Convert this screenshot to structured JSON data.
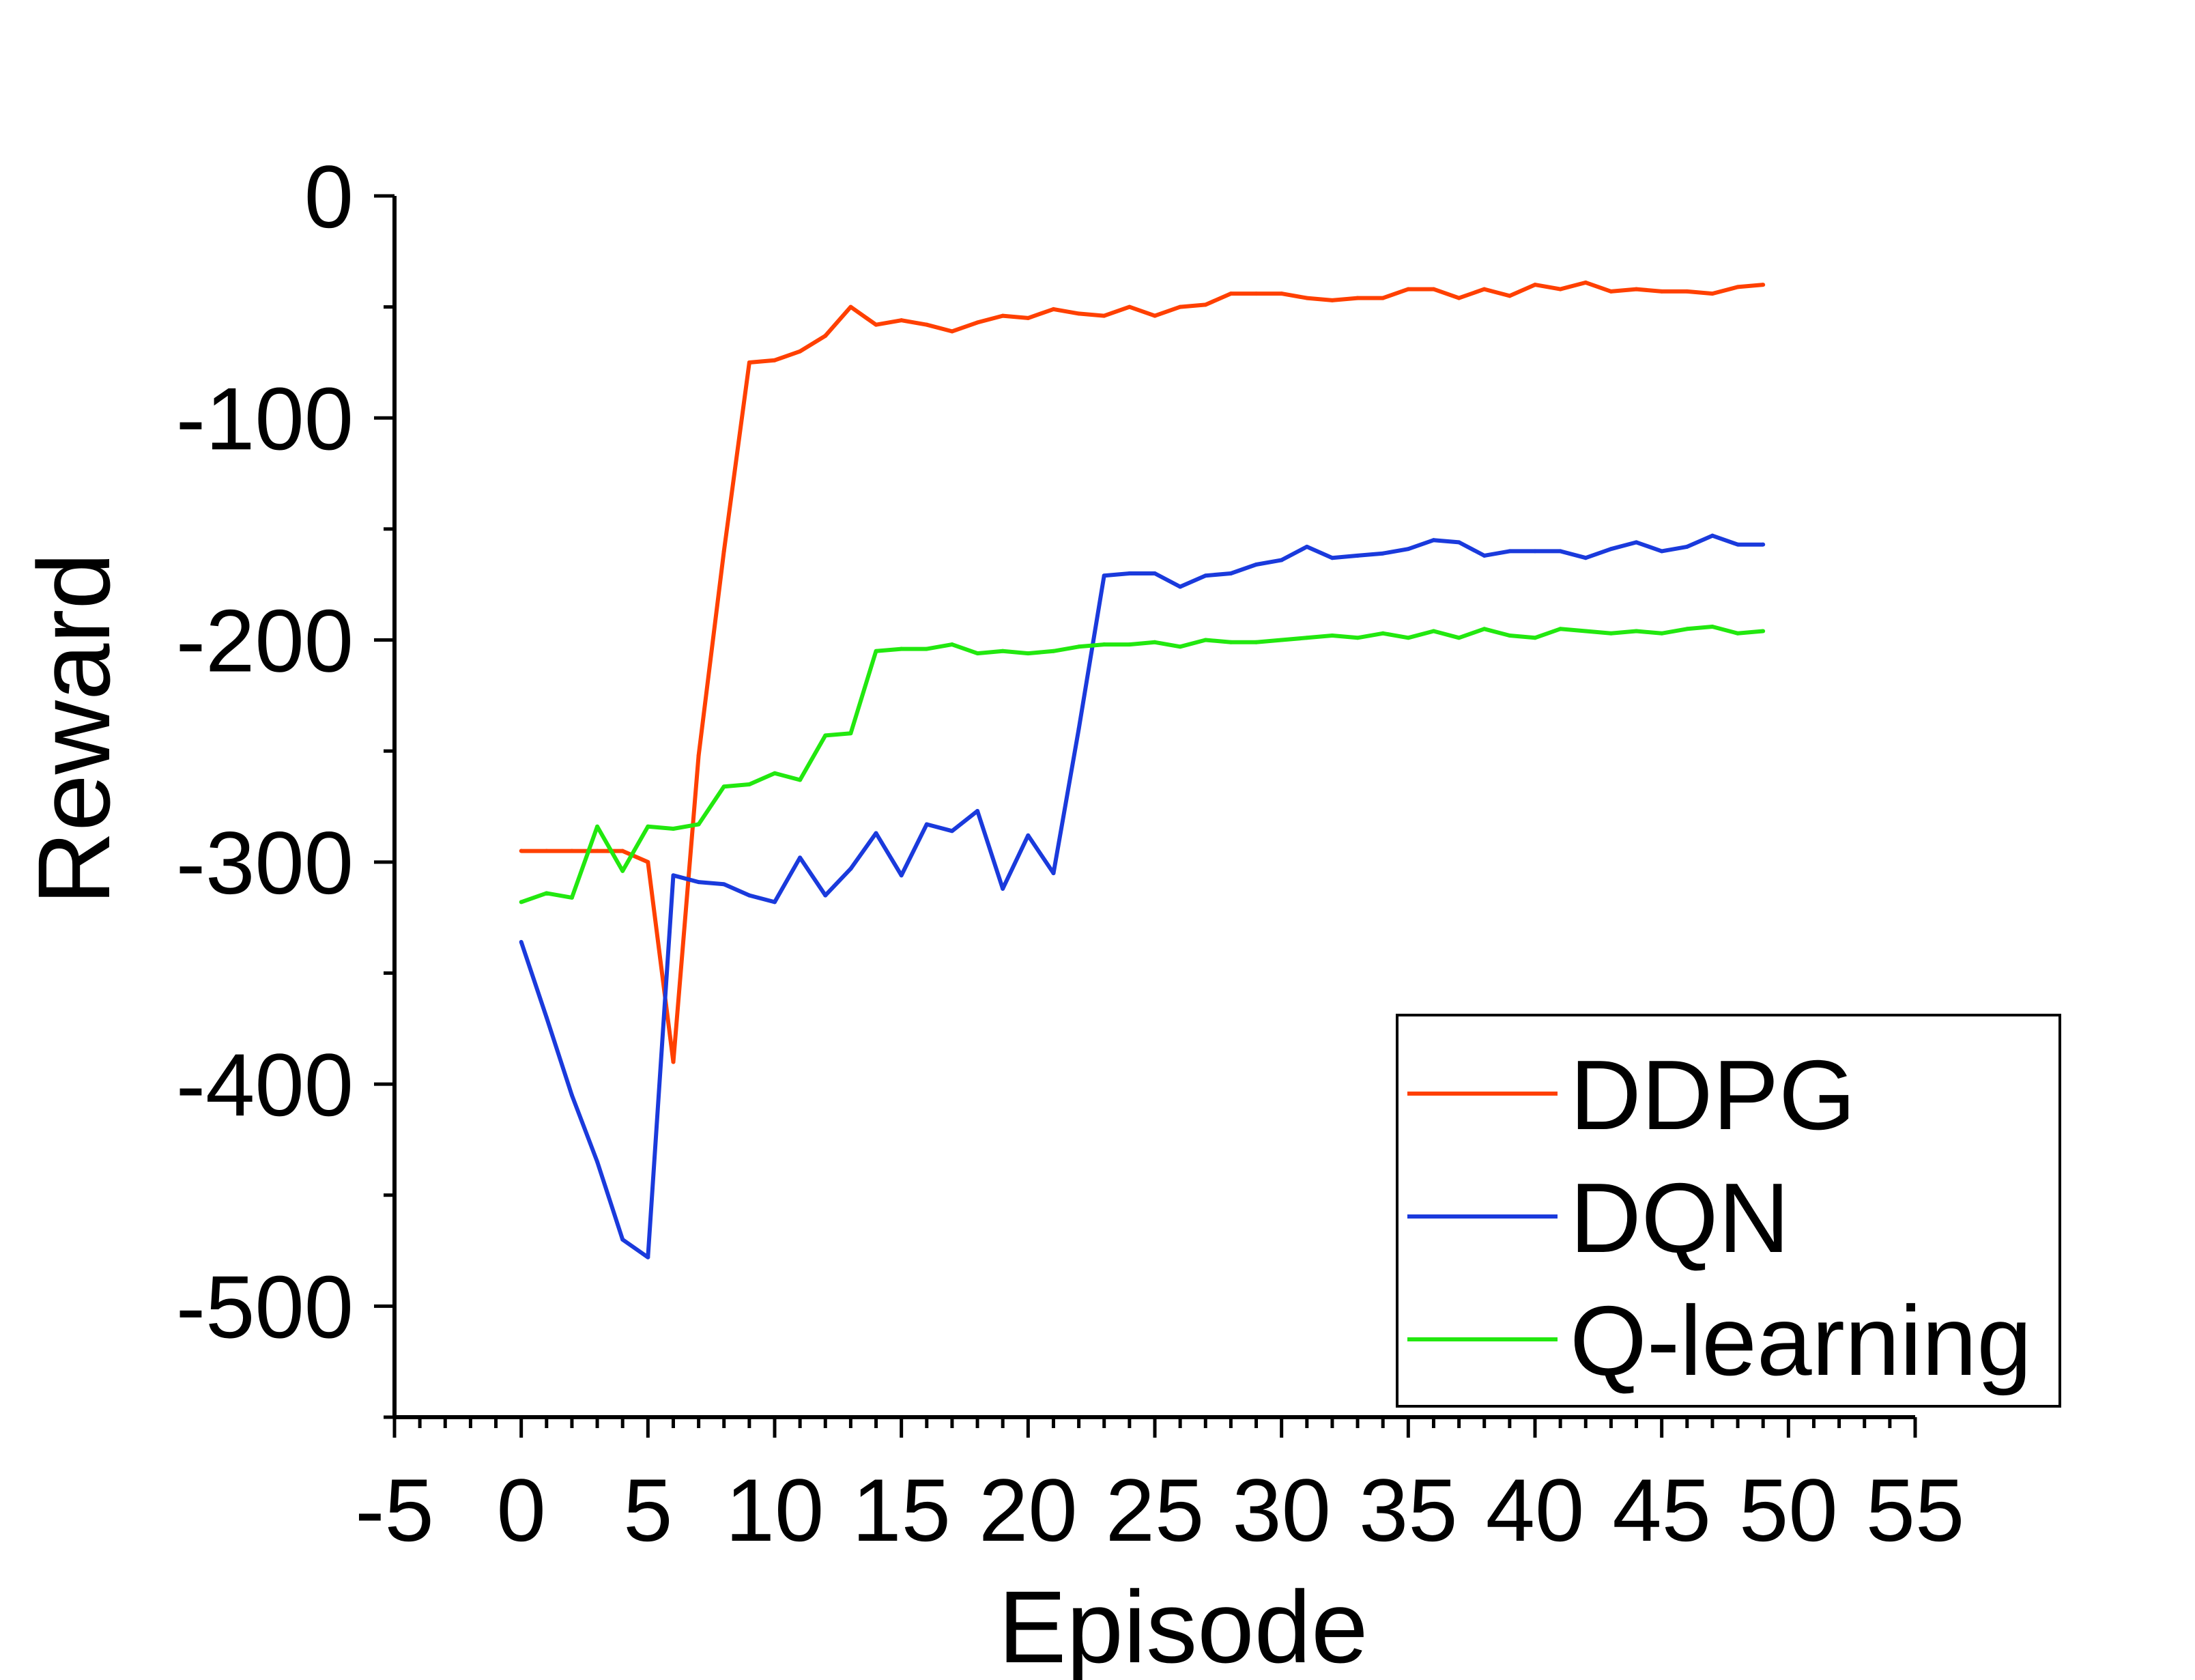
{
  "chart_data": {
    "type": "line",
    "title": "",
    "xlabel": "Episode",
    "ylabel": "Reward",
    "xlim": [
      -5,
      55
    ],
    "ylim": [
      -550,
      0
    ],
    "x_ticks": [
      -5,
      0,
      5,
      10,
      15,
      20,
      25,
      30,
      35,
      40,
      45,
      50,
      55
    ],
    "y_ticks": [
      0,
      -100,
      -200,
      -300,
      -400,
      -500
    ],
    "x_tick_labels": [
      "-5",
      "0",
      "5",
      "10",
      "15",
      "20",
      "25",
      "30",
      "35",
      "40",
      "45",
      "50",
      "55"
    ],
    "y_tick_labels": [
      "0",
      "-100",
      "-200",
      "-300",
      "-400",
      "-500"
    ],
    "grid": false,
    "legend_position": "bottom-right",
    "x": [
      0,
      1,
      2,
      3,
      4,
      5,
      6,
      7,
      8,
      9,
      10,
      11,
      12,
      13,
      14,
      15,
      16,
      17,
      18,
      19,
      20,
      21,
      22,
      23,
      24,
      25,
      26,
      27,
      28,
      29,
      30,
      31,
      32,
      33,
      34,
      35,
      36,
      37,
      38,
      39,
      40,
      41,
      42,
      43,
      44,
      45,
      46,
      47,
      48,
      49
    ],
    "series": [
      {
        "name": "DDPG",
        "color": "#ff4000",
        "values": [
          -295,
          -295,
          -295,
          -295,
          -295,
          -300,
          -390,
          -252,
          -160,
          -75,
          -74,
          -70,
          -63,
          -50,
          -58,
          -56,
          -58,
          -61,
          -57,
          -54,
          -55,
          -51,
          -53,
          -54,
          -50,
          -54,
          -50,
          -49,
          -44,
          -44,
          -44,
          -46,
          -47,
          -46,
          -46,
          -42,
          -42,
          -46,
          -42,
          -45,
          -40,
          -42,
          -39,
          -43,
          -42,
          -43,
          -43,
          -44,
          -41,
          -40
        ]
      },
      {
        "name": "DQN",
        "color": "#1a3adc",
        "values": [
          -336,
          -370,
          -405,
          -435,
          -470,
          -478,
          -306,
          -309,
          -310,
          -315,
          -318,
          -298,
          -315,
          -303,
          -287,
          -306,
          -283,
          -286,
          -277,
          -312,
          -288,
          -305,
          -240,
          -171,
          -170,
          -170,
          -176,
          -171,
          -170,
          -166,
          -164,
          -158,
          -163,
          -162,
          -161,
          -159,
          -155,
          -156,
          -162,
          -160,
          -160,
          -160,
          -163,
          -159,
          -156,
          -160,
          -158,
          -153,
          -157,
          -157
        ]
      },
      {
        "name": "Q-learning",
        "color": "#22e80f",
        "values": [
          -318,
          -314,
          -316,
          -284,
          -304,
          -284,
          -285,
          -283,
          -266,
          -265,
          -260,
          -263,
          -243,
          -242,
          -205,
          -204,
          -204,
          -202,
          -206,
          -205,
          -206,
          -205,
          -203,
          -202,
          -202,
          -201,
          -203,
          -200,
          -201,
          -201,
          -200,
          -199,
          -198,
          -199,
          -197,
          -199,
          -196,
          -199,
          -195,
          -198,
          -199,
          -195,
          -196,
          -197,
          -196,
          -197,
          -195,
          -194,
          -197,
          -196
        ]
      }
    ]
  }
}
